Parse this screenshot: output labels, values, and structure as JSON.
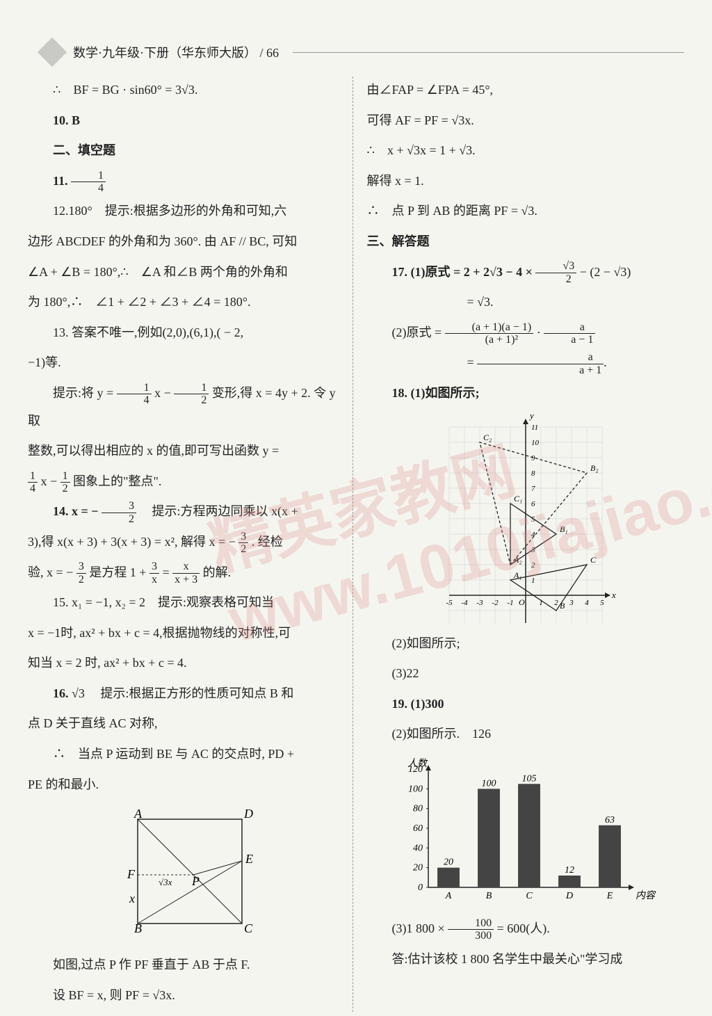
{
  "header": {
    "title": "数学·九年级·下册（华东师大版）  /  66"
  },
  "watermark": "精英家教网 www.1010jiajiao.com",
  "left": {
    "l1_pre": "∴　BF = BG · sin60° = 3",
    "l1_post": ".",
    "l2": "10. B",
    "l3": "二、填空题",
    "l4": "11. ",
    "l5": "12.180°　提示:根据多边形的外角和可知,六",
    "l6": "边形 ABCDEF 的外角和为 360°. 由 AF // BC, 可知",
    "l7": "∠A + ∠B = 180°,∴　∠A 和∠B 两个角的外角和",
    "l8": "为 180°,∴　∠1 + ∠2 + ∠3 + ∠4 = 180°.",
    "l9": "13. 答案不唯一,例如(2,0),(6,1),( − 2,",
    "l10": "−1)等.",
    "l11a": "提示:将 y = ",
    "l11b": "x − ",
    "l11c": "变形,得 x = 4y + 2. 令 y 取",
    "l12": "整数,可以得出相应的 x 的值,即可写出函数 y =",
    "l13b": "x − ",
    "l13c": "图象上的\"整点\".",
    "l14a": "14. x = − ",
    "l14b": "　提示:方程两边同乘以 x(x +",
    "l15a": "3),得 x(x + 3) + 3(x + 3) = x², 解得 x = − ",
    "l15b": ". 经检",
    "l16a": "验, x = − ",
    "l16b": "是方程 1 + ",
    "l16c": " = ",
    "l16d": "的解.",
    "l17": "15. x₁ = −1, x₂ = 2　提示:观察表格可知当",
    "l18": "x = −1时, ax² + bx + c = 4,根据抛物线的对称性,可",
    "l19": "知当 x = 2 时, ax² + bx + c = 4.",
    "l20a": "16.",
    "l20b": "　提示:根据正方形的性质可知点 B 和",
    "l21": "点 D 关于直线 AC 对称,",
    "l22": "∴　当点 P 运动到 BE 与 AC 的交点时, PD +",
    "l23": "PE 的和最小.",
    "l24": "如图,过点 P 作 PF 垂直于 AB 于点 F.",
    "l25": "设 BF = x, 则 PF = √3x.",
    "figure1": {
      "labels": {
        "A": "A",
        "D": "D",
        "B": "B",
        "C": "C",
        "E": "E",
        "F": "F",
        "P": "P",
        "x": "x",
        "sqrt3x": "√3x"
      }
    }
  },
  "right": {
    "r1": "由∠FAP = ∠FPA = 45°,",
    "r2": "可得 AF = PF = √3x.",
    "r3": "∴　x + √3x = 1 + √3.",
    "r4": "解得 x = 1.",
    "r5": "∴　点 P 到 AB 的距离 PF = √3.",
    "r6": "三、解答题",
    "r7a": "17. (1)原式 = 2 + 2√3 − 4 × ",
    "r7b": " − (2 − √3)",
    "r8": "= √3.",
    "r9a": "(2)原式 = ",
    "r9b": " · ",
    "r10": "= ",
    "r11": "18. (1)如图所示;",
    "r12": "(2)如图所示;",
    "r13": "(3)22",
    "r14": "19. (1)300",
    "r15": "(2)如图所示.　126",
    "r16a": "(3)1 800 × ",
    "r16b": " = 600(人).",
    "r17": "答:估计该校 1 800 名学生中最关心\"学习成",
    "chart": {
      "type": "bar",
      "ylabel": "人数",
      "xlabel": "内容",
      "categories": [
        "A",
        "B",
        "C",
        "D",
        "E"
      ],
      "values": [
        20,
        100,
        105,
        12,
        63
      ],
      "ylim": [
        0,
        120
      ],
      "ytick_step": 20,
      "bar_color": "#444444",
      "background_color": "#f5f5f0",
      "label_fontsize": 14
    },
    "grid": {
      "xlim": [
        -5,
        5
      ],
      "ylim": [
        -2,
        11
      ],
      "points": {
        "A1": [
          -1,
          1
        ],
        "B": [
          2,
          -1
        ],
        "C": [
          4,
          2
        ],
        "A2": [
          -1,
          2
        ],
        "B1": [
          2,
          4
        ],
        "C1": [
          -1,
          6
        ],
        "B2": [
          4,
          8
        ],
        "C2": [
          -3,
          10
        ]
      },
      "labels": [
        "A₁",
        "B",
        "C",
        "A₂",
        "B₁",
        "C₁",
        "B₂",
        "C₂",
        "O",
        "x",
        "y"
      ]
    }
  }
}
